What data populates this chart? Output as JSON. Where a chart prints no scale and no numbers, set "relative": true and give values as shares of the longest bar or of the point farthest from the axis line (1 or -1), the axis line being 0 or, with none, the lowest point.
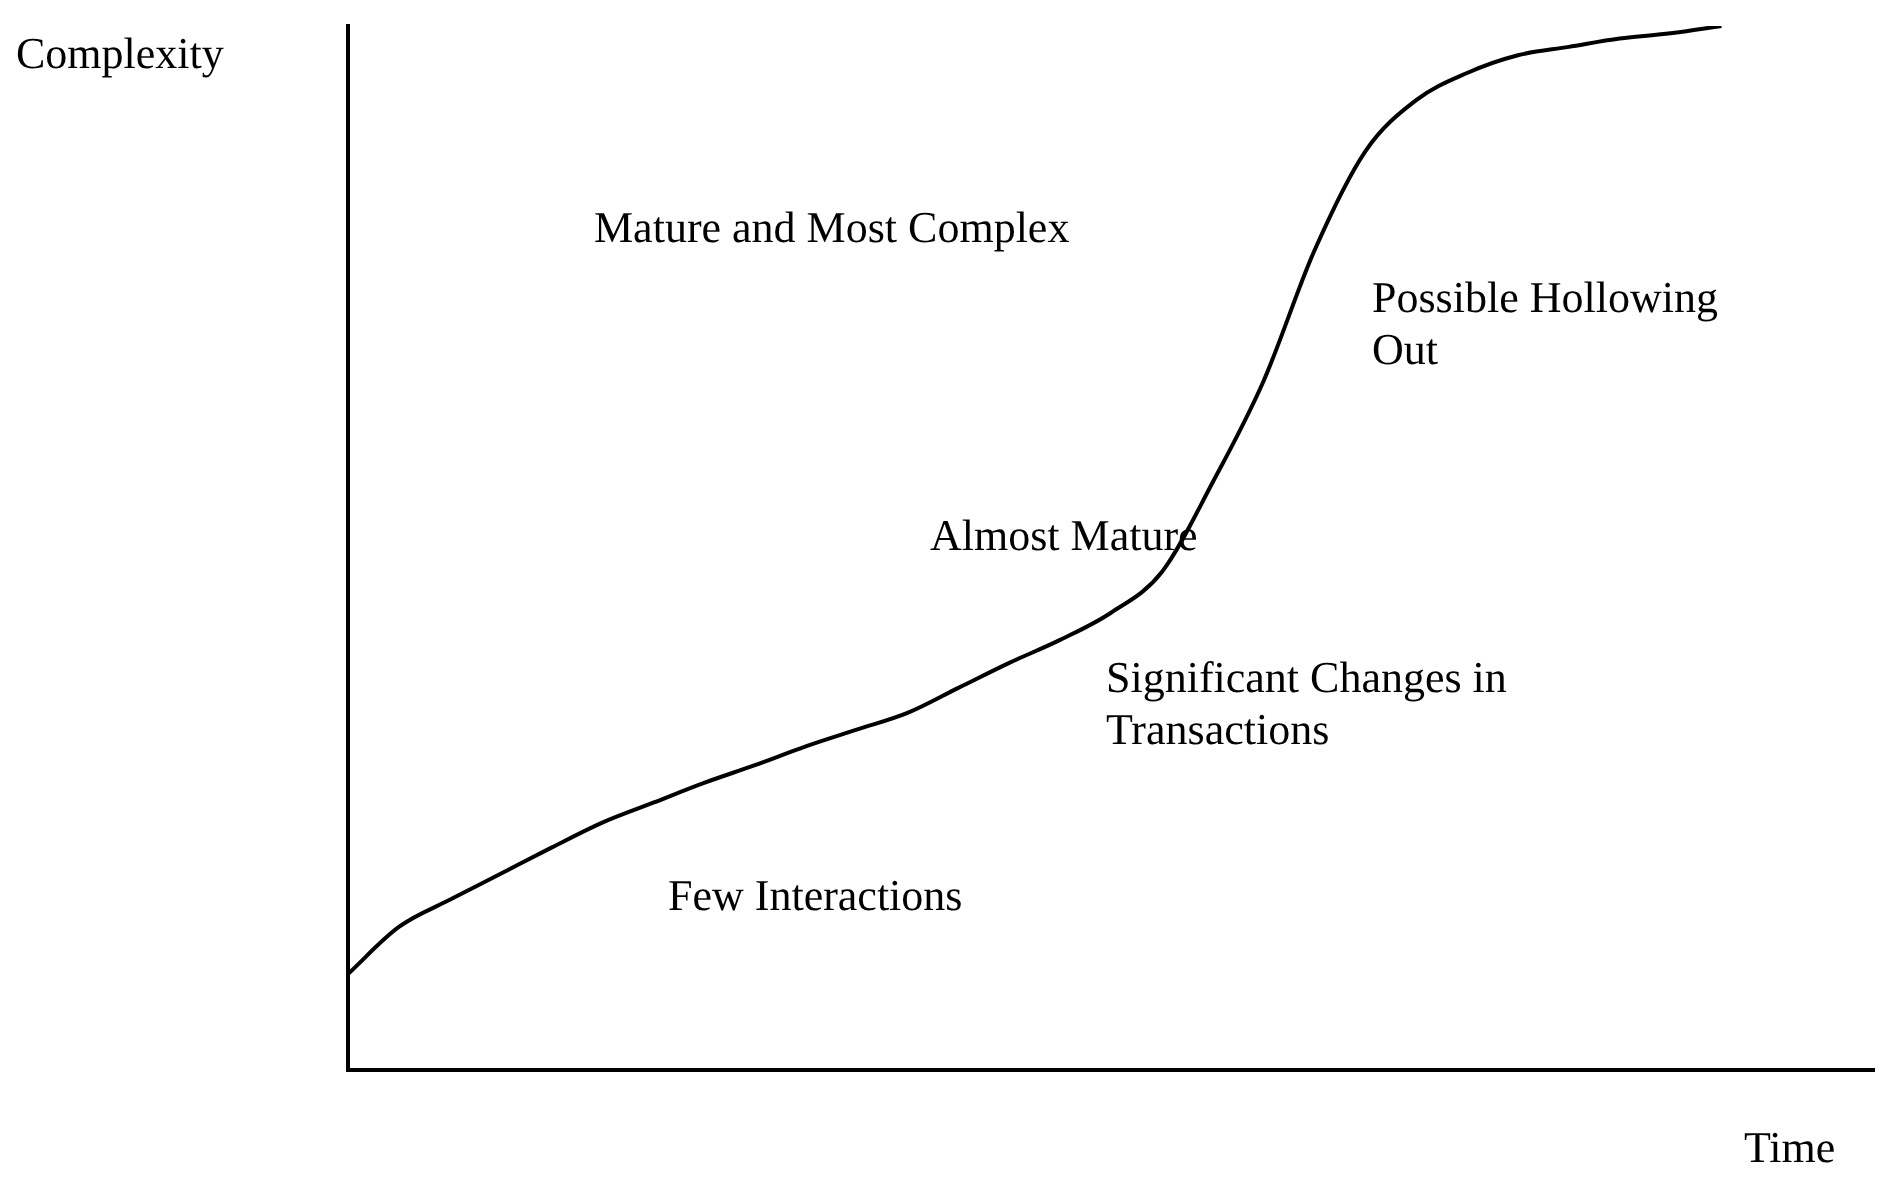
{
  "chart_data": {
    "type": "line",
    "relative": true,
    "xlabel": "Time",
    "ylabel": "Complexity",
    "grid": false,
    "legend": false,
    "marker": "none",
    "line_style": "solid",
    "categories": [
      null,
      null,
      null,
      null,
      null,
      null,
      null,
      null,
      null,
      null,
      null,
      null,
      null,
      null,
      null,
      null,
      null,
      null,
      null,
      null,
      null,
      null,
      null,
      null,
      null,
      null,
      null,
      null,
      null,
      null,
      null
    ],
    "series": [
      {
        "color": "#000000",
        "values": [
          0.092,
          0.137,
          0.163,
          0.188,
          0.213,
          0.237,
          0.256,
          0.275,
          0.292,
          0.31,
          0.326,
          0.342,
          0.366,
          0.39,
          0.412,
          0.438,
          0.477,
          0.563,
          0.66,
          0.785,
          0.88,
          0.929,
          0.955,
          0.972,
          0.98,
          0.988,
          0.993,
          1,
          null,
          null,
          null
        ]
      }
    ],
    "annotations": [
      "Mature and Most Complex",
      "Possible Hollowing Out",
      "Almost Mature",
      "Significant Changes in Transactions",
      "Few Interactions"
    ]
  }
}
